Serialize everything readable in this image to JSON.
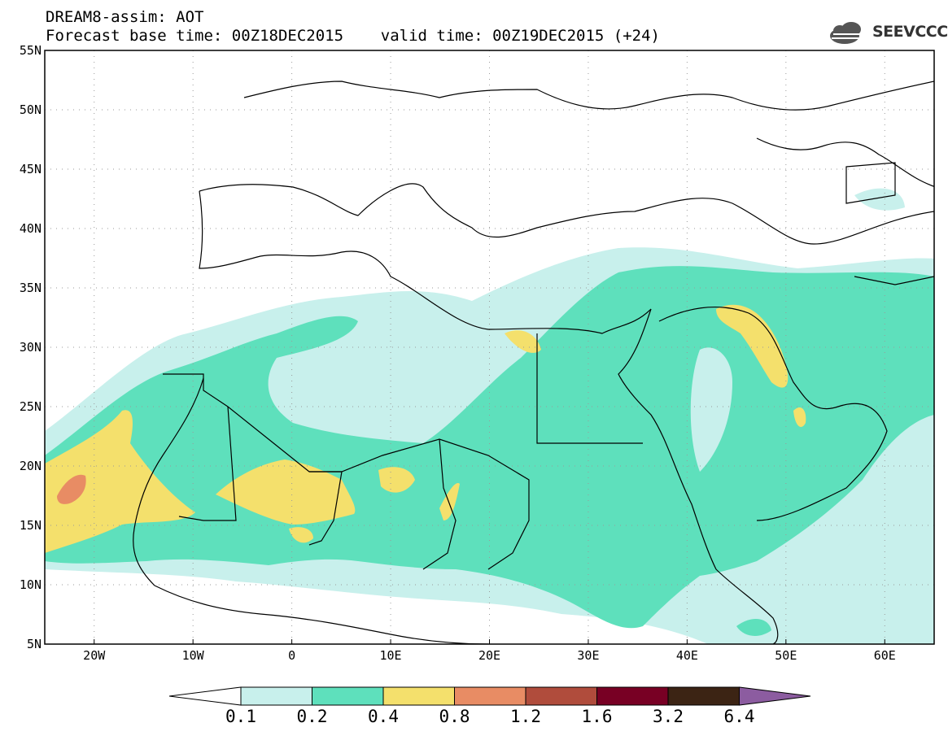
{
  "title": {
    "line1": "DREAM8-assim: AOT",
    "line2": "Forecast base time: 00Z18DEC2015    valid time: 00Z19DEC2015 (+24)"
  },
  "logo": {
    "text": "SEEVCCC",
    "icon": "cloud-icon"
  },
  "map": {
    "projection": "lat-lon",
    "lon_range": [
      -25,
      65
    ],
    "lat_range": [
      5,
      55
    ],
    "lat_labels": [
      "55N",
      "50N",
      "45N",
      "40N",
      "35N",
      "30N",
      "25N",
      "20N",
      "15N",
      "10N",
      "5N"
    ],
    "lon_labels": [
      "20W",
      "10W",
      "0",
      "10E",
      "20E",
      "30E",
      "40E",
      "50E",
      "60E"
    ],
    "gridlines": "dotted"
  },
  "colorbar": {
    "thresholds": [
      "0.1",
      "0.2",
      "0.4",
      "0.8",
      "1.2",
      "1.6",
      "3.2",
      "6.4"
    ],
    "colors": [
      "#c8f0ec",
      "#5ee0bc",
      "#f4e06c",
      "#e88c64",
      "#b04c3c",
      "#780024",
      "#3c2414",
      "#8c5ca0"
    ],
    "under_color": "#ffffff"
  }
}
